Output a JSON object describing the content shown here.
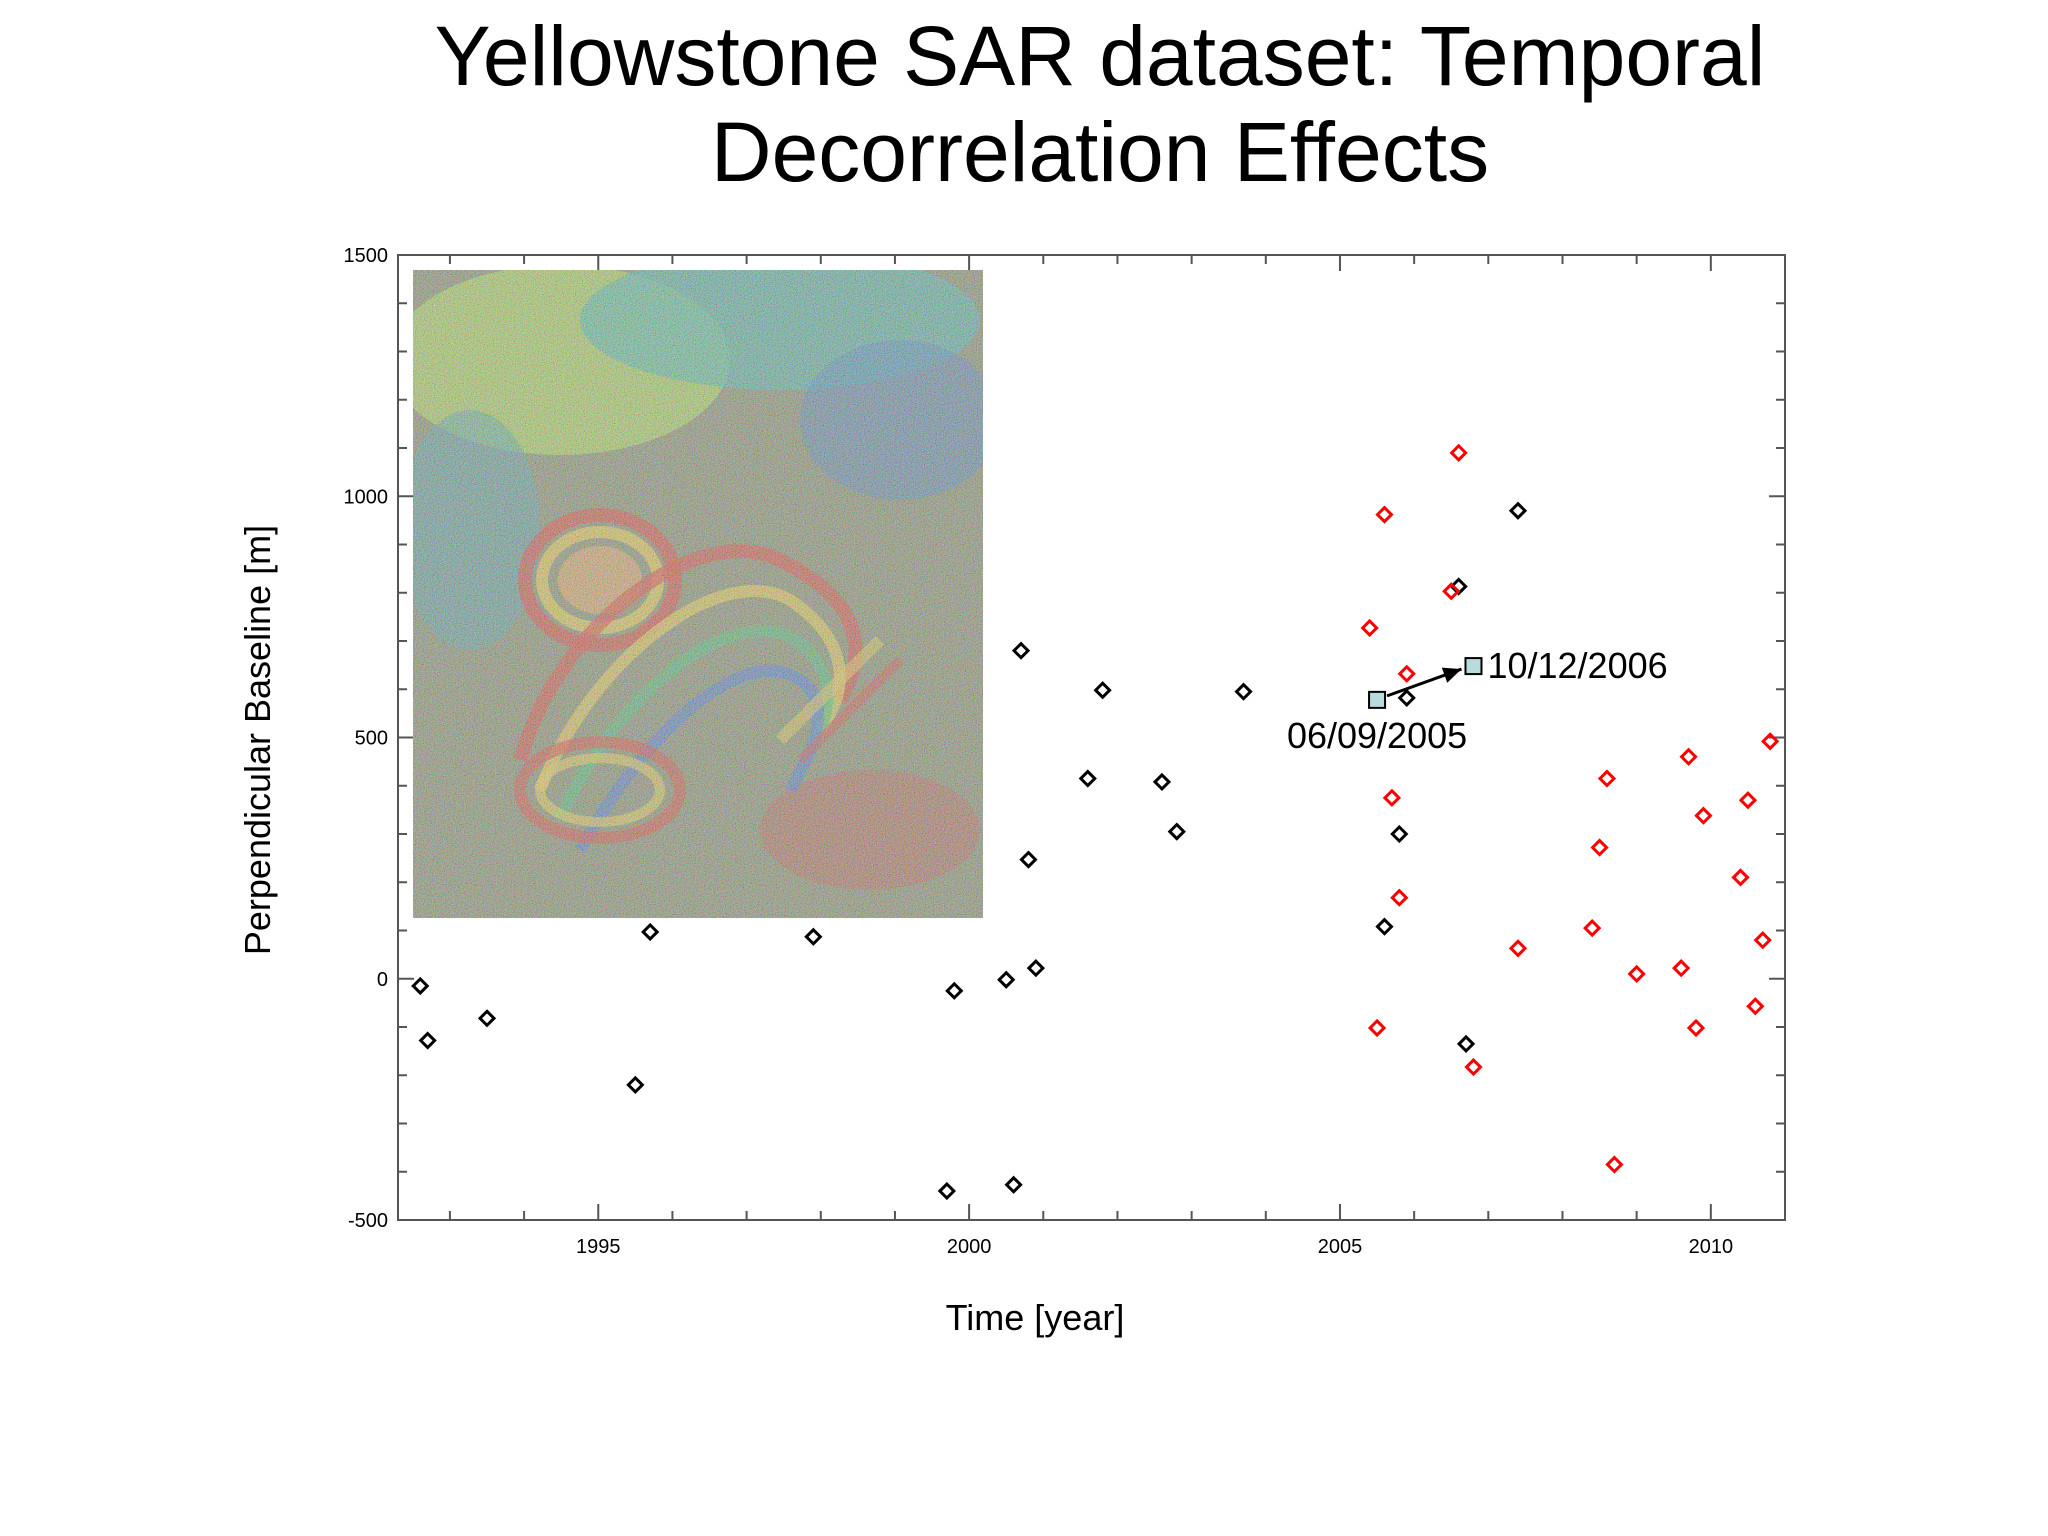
{
  "title": "Yellowstone SAR dataset: Temporal Decorrelation Effects",
  "chart_data": {
    "type": "scatter",
    "xlabel": "Time [year]",
    "ylabel": "Perpendicular Baseline [m]",
    "xlim": [
      1992.3,
      2011.0
    ],
    "ylim": [
      -500,
      1500
    ],
    "x_ticks": [
      1995,
      2000,
      2005,
      2010
    ],
    "y_ticks": [
      -500,
      0,
      500,
      1000,
      1500
    ],
    "grid": false,
    "marker": "diamond",
    "series": [
      {
        "color": "#000000",
        "points": [
          [
            1992.6,
            -15
          ],
          [
            1992.7,
            -128
          ],
          [
            1993.5,
            -82
          ],
          [
            1995.5,
            -220
          ],
          [
            1995.7,
            97
          ],
          [
            1997.9,
            87
          ],
          [
            1999.7,
            -440
          ],
          [
            1999.8,
            -25
          ],
          [
            2000.5,
            -2
          ],
          [
            2000.6,
            -427
          ],
          [
            2000.7,
            680
          ],
          [
            2000.8,
            247
          ],
          [
            2000.9,
            22
          ],
          [
            2001.6,
            415
          ],
          [
            2001.8,
            598
          ],
          [
            2002.6,
            408
          ],
          [
            2002.8,
            305
          ],
          [
            2003.7,
            595
          ],
          [
            2005.6,
            108
          ],
          [
            2005.8,
            300
          ],
          [
            2005.9,
            582
          ],
          [
            2006.6,
            813
          ],
          [
            2006.7,
            -135
          ],
          [
            2007.4,
            970
          ]
        ]
      },
      {
        "color": "#ff0000",
        "points": [
          [
            2005.4,
            727
          ],
          [
            2005.5,
            -102
          ],
          [
            2005.6,
            962
          ],
          [
            2005.7,
            375
          ],
          [
            2005.8,
            168
          ],
          [
            2005.9,
            632
          ],
          [
            2006.5,
            803
          ],
          [
            2006.6,
            1090
          ],
          [
            2006.8,
            -183
          ],
          [
            2007.4,
            63
          ],
          [
            2008.4,
            105
          ],
          [
            2008.5,
            272
          ],
          [
            2008.6,
            415
          ],
          [
            2008.7,
            -385
          ],
          [
            2009.0,
            10
          ],
          [
            2009.6,
            22
          ],
          [
            2009.7,
            460
          ],
          [
            2009.8,
            -102
          ],
          [
            2009.9,
            338
          ],
          [
            2010.4,
            210
          ],
          [
            2010.5,
            370
          ],
          [
            2010.6,
            -57
          ],
          [
            2010.7,
            80
          ],
          [
            2010.8,
            492
          ]
        ]
      }
    ],
    "highlight_points": [
      {
        "x": 2005.5,
        "y": 578,
        "label": "06/09/2005",
        "color": "#b8dcdc"
      },
      {
        "x": 2006.8,
        "y": 648,
        "label": "10/12/2006",
        "color": "#b8dcdc"
      }
    ],
    "arrow": {
      "from": [
        2005.5,
        578
      ],
      "to": [
        2006.8,
        648
      ]
    }
  }
}
